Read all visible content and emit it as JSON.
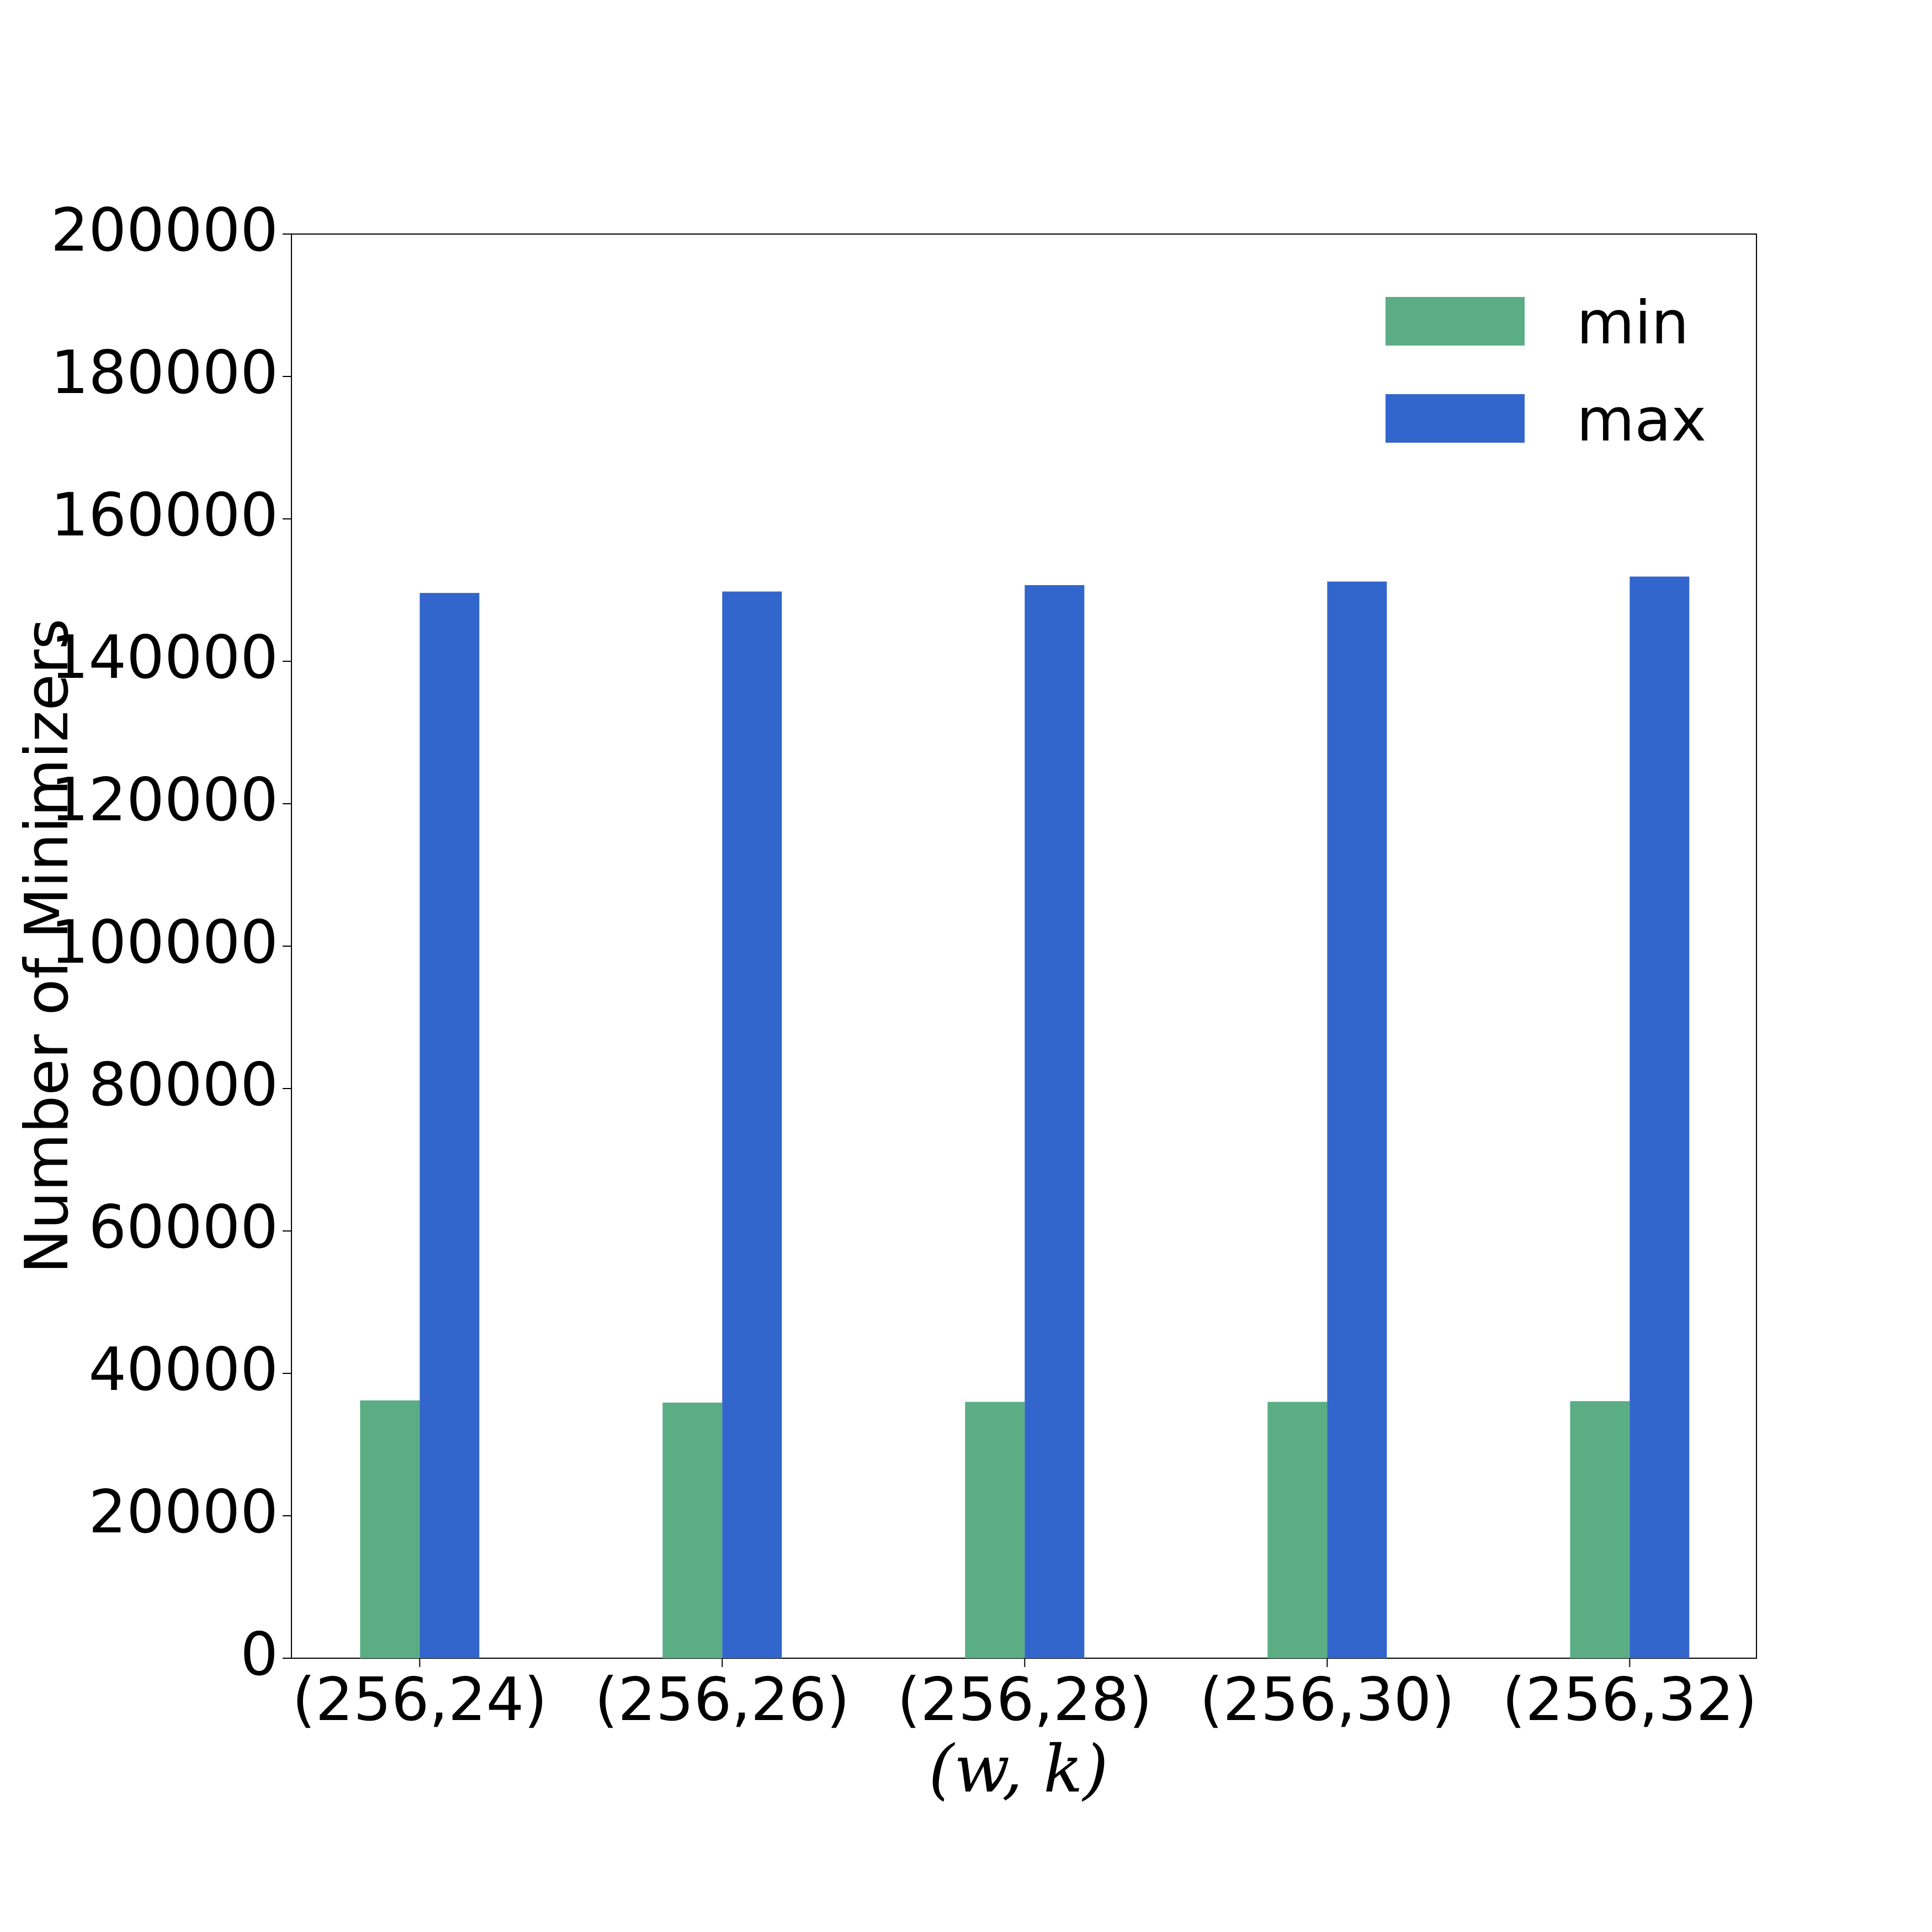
{
  "chart_data": {
    "type": "bar",
    "categories": [
      "(256,24)",
      "(256,26)",
      "(256,28)",
      "(256,30)",
      "(256,32)"
    ],
    "series": [
      {
        "name": "min",
        "color": "#5bad84",
        "values": [
          36200,
          35900,
          36000,
          36000,
          36100
        ]
      },
      {
        "name": "max",
        "color": "#3366cc",
        "values": [
          149600,
          149800,
          150700,
          151200,
          151900
        ]
      }
    ],
    "xlabel": "(w, k)",
    "ylabel": "Number of Minimizers",
    "ylim": [
      0,
      200000
    ],
    "yticks": [
      0,
      20000,
      40000,
      60000,
      80000,
      100000,
      120000,
      140000,
      160000,
      180000,
      200000
    ],
    "grid": false,
    "legend": "upper right"
  }
}
